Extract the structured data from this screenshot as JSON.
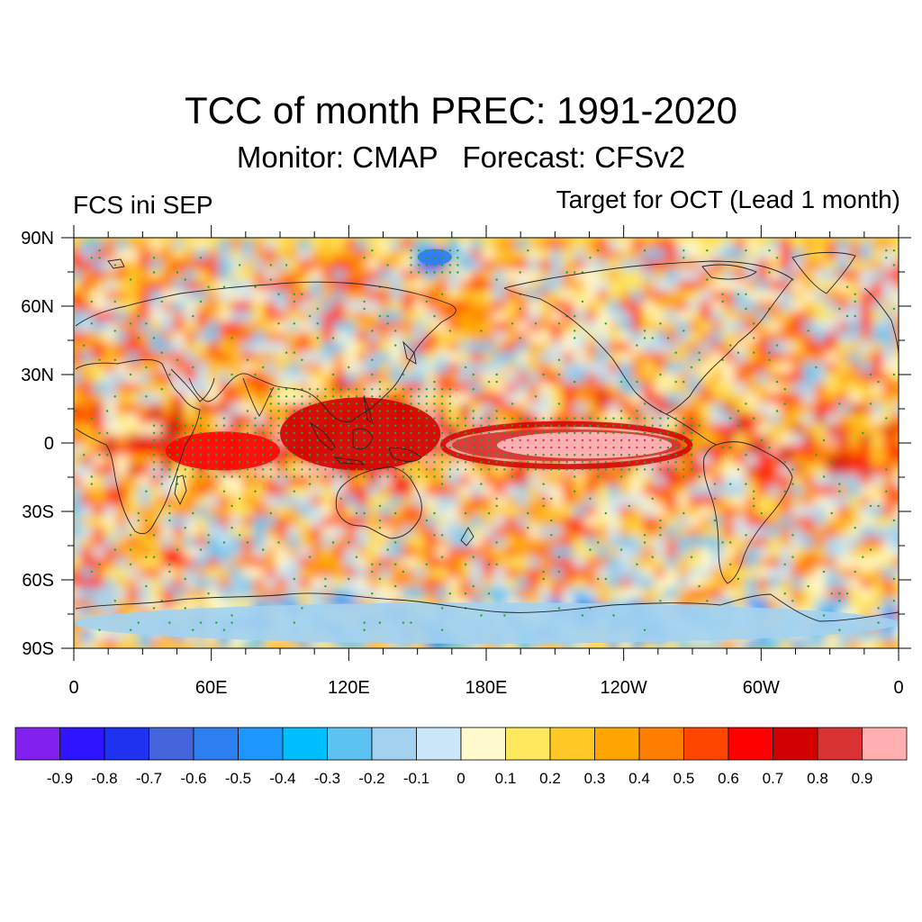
{
  "title": "TCC of month PREC: 1991-2020",
  "subtitle": "Monitor: CMAP   Forecast: CFSv2",
  "left_label": "FCS ini SEP",
  "right_label": "Target for OCT (Lead 1 month)",
  "chart_data": {
    "type": "heatmap",
    "projection": "cylindrical-equidistant",
    "lon_range": [
      0,
      360
    ],
    "lat_range": [
      -90,
      90
    ],
    "y_ticks": [
      {
        "lat": 90,
        "label": "90N"
      },
      {
        "lat": 60,
        "label": "60N"
      },
      {
        "lat": 30,
        "label": "30N"
      },
      {
        "lat": 0,
        "label": "0"
      },
      {
        "lat": -30,
        "label": "30S"
      },
      {
        "lat": -60,
        "label": "60S"
      },
      {
        "lat": -90,
        "label": "90S"
      }
    ],
    "x_ticks": [
      {
        "lon": 0,
        "label": "0"
      },
      {
        "lon": 60,
        "label": "60E"
      },
      {
        "lon": 120,
        "label": "120E"
      },
      {
        "lon": 180,
        "label": "180E"
      },
      {
        "lon": 240,
        "label": "120W"
      },
      {
        "lon": 300,
        "label": "60W"
      },
      {
        "lon": 360,
        "label": "0"
      }
    ],
    "colorbar": {
      "colors": [
        "#8220f0",
        "#2f14ff",
        "#1e32f0",
        "#4464dc",
        "#2d7ff0",
        "#1e96ff",
        "#00bfff",
        "#5bc2f2",
        "#a2d2f0",
        "#cce8f8",
        "#fffacd",
        "#ffe75e",
        "#ffc825",
        "#ffa500",
        "#ff7d00",
        "#ff4600",
        "#ff0000",
        "#d20000",
        "#d83232",
        "#ffafaf"
      ],
      "labels": [
        "-0.9",
        "-0.8",
        "-0.7",
        "-0.6",
        "-0.5",
        "-0.4",
        "-0.3",
        "-0.2",
        "-0.1",
        "0",
        "0.1",
        "0.2",
        "0.3",
        "0.4",
        "0.5",
        "0.6",
        "0.7",
        "0.8",
        "0.9"
      ]
    },
    "features": [
      {
        "name": "tropical pacific positive band",
        "lon_range": [
          165,
          265
        ],
        "lat_range": [
          -8,
          6
        ],
        "value": 0.9
      },
      {
        "name": "maritime continent positive",
        "lon_range": [
          90,
          160
        ],
        "lat_range": [
          -12,
          20
        ],
        "value": 0.7
      },
      {
        "name": "indian ocean positive",
        "lon_range": [
          40,
          90
        ],
        "lat_range": [
          -12,
          5
        ],
        "value": 0.6
      },
      {
        "name": "arctic negative patch",
        "lon_range": [
          150,
          165
        ],
        "lat_range": [
          78,
          85
        ],
        "value": -0.6
      },
      {
        "name": "antarctic negative band",
        "lon_range": [
          0,
          360
        ],
        "lat_range": [
          -88,
          -70
        ],
        "value": -0.2
      }
    ]
  }
}
